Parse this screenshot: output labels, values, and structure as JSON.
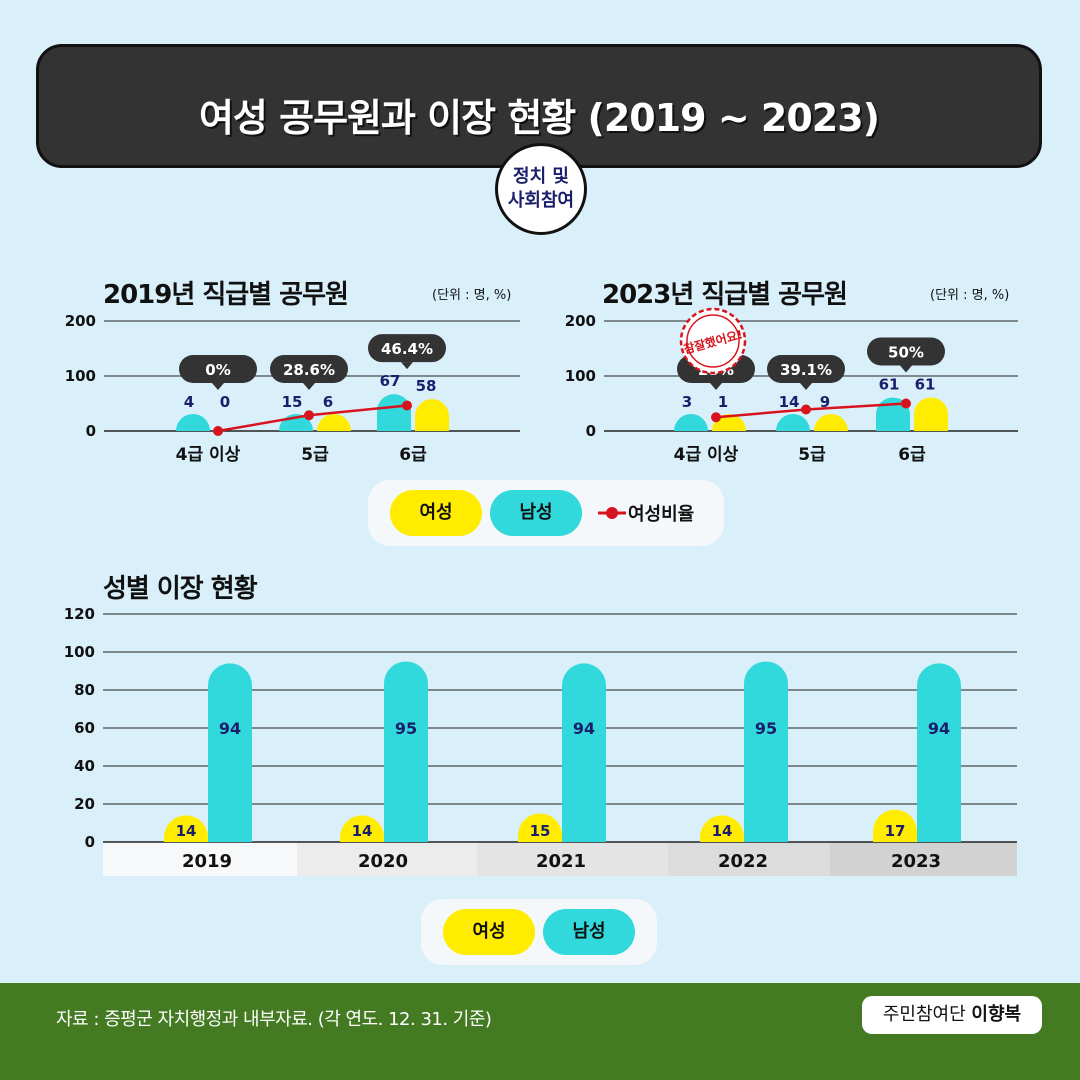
{
  "header": {
    "title": "여성 공무원과 이장 현황 (2019 ~ 2023)",
    "badge_line1": "정치 및",
    "badge_line2": "사회참여"
  },
  "chart_data": [
    {
      "type": "bar",
      "title": "2019년 직급별 공무원",
      "unit": "(단위 : 명, %)",
      "categories": [
        "4급 이상",
        "5급",
        "6급"
      ],
      "series": [
        {
          "name": "남성",
          "values": [
            4,
            15,
            67
          ]
        },
        {
          "name": "여성",
          "values": [
            0,
            6,
            58
          ]
        },
        {
          "name": "여성비율",
          "values": [
            0,
            28.6,
            46.4
          ],
          "labels": [
            "0%",
            "28.6%",
            "46.4%"
          ]
        }
      ],
      "yticks": [
        0,
        100,
        200
      ],
      "ylim": [
        0,
        200
      ]
    },
    {
      "type": "bar",
      "title": "2023년 직급별 공무원",
      "unit": "(단위 : 명, %)",
      "stamp": "참잘했어요!",
      "categories": [
        "4급 이상",
        "5급",
        "6급"
      ],
      "series": [
        {
          "name": "남성",
          "values": [
            3,
            14,
            61
          ]
        },
        {
          "name": "여성",
          "values": [
            1,
            9,
            61
          ]
        },
        {
          "name": "여성비율",
          "values": [
            25,
            39.1,
            50
          ],
          "labels": [
            "25%",
            "39.1%",
            "50%"
          ]
        }
      ],
      "yticks": [
        0,
        100,
        200
      ],
      "ylim": [
        0,
        200
      ]
    },
    {
      "type": "bar",
      "title": "성별 이장 현황",
      "categories": [
        "2019",
        "2020",
        "2021",
        "2022",
        "2023"
      ],
      "series": [
        {
          "name": "여성",
          "values": [
            14,
            14,
            15,
            14,
            17
          ]
        },
        {
          "name": "남성",
          "values": [
            94,
            95,
            94,
            95,
            94
          ]
        }
      ],
      "yticks": [
        0,
        20,
        40,
        60,
        80,
        100,
        120
      ],
      "ylim": [
        0,
        120
      ]
    }
  ],
  "legend_top": {
    "female": "여성",
    "male": "남성",
    "ratio": "여성비율"
  },
  "legend_bottom": {
    "female": "여성",
    "male": "남성"
  },
  "colors": {
    "female": "#ffec00",
    "male": "#31d8dc",
    "ratio": "#d7141e",
    "label_box": "#333333",
    "text_value": "#1b1f6b"
  },
  "footer": {
    "source": "자료 : 증평군 자치행정과 내부자료. (각 연도. 12. 31. 기준)",
    "author_prefix": "주민참여단",
    "author_name": "이향복"
  }
}
